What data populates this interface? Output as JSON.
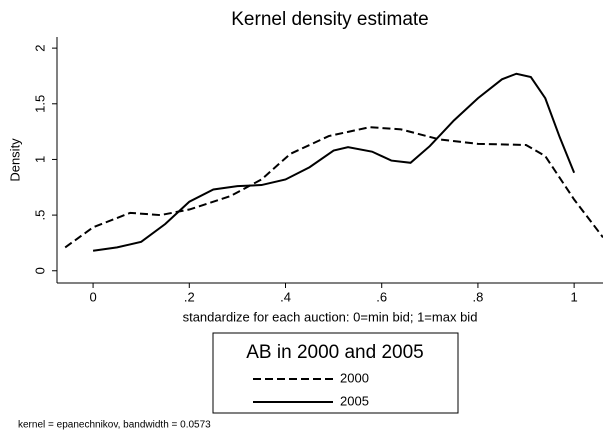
{
  "chart_data": {
    "type": "line",
    "title": "Kernel density estimate",
    "xlabel": "standardize for each auction: 0=min bid; 1=max bid",
    "ylabel": "Density",
    "note": "kernel = epanechnikov, bandwidth = 0.0573",
    "legend_title": "AB in 2000 and 2005",
    "xlim": [
      -0.075,
      1.06
    ],
    "ylim": [
      -0.11,
      2.1
    ],
    "xticks": [
      0,
      {
        "value": 0.2,
        "label": ".2"
      },
      {
        "value": 0.4,
        "label": ".4"
      },
      {
        "value": 0.6,
        "label": ".6"
      },
      {
        "value": 0.8,
        "label": ".8"
      },
      1
    ],
    "yticks": [
      0,
      {
        "value": 0.5,
        "label": ".5"
      },
      1,
      1.5,
      2
    ],
    "series": [
      {
        "name": "2000",
        "color": "#000000",
        "dash": true,
        "x": [
          -0.058,
          0,
          0.077,
          0.14,
          0.2,
          0.285,
          0.35,
          0.41,
          0.49,
          0.575,
          0.64,
          0.72,
          0.8,
          0.9,
          0.94,
          1.0,
          1.06
        ],
        "values": [
          0.21,
          0.39,
          0.52,
          0.5,
          0.55,
          0.67,
          0.82,
          1.05,
          1.21,
          1.29,
          1.27,
          1.18,
          1.14,
          1.13,
          1.03,
          0.64,
          0.3
        ]
      },
      {
        "name": "2005",
        "color": "#000000",
        "dash": false,
        "x": [
          0,
          0.05,
          0.1,
          0.15,
          0.2,
          0.25,
          0.3,
          0.35,
          0.4,
          0.45,
          0.5,
          0.53,
          0.58,
          0.62,
          0.66,
          0.7,
          0.75,
          0.8,
          0.85,
          0.88,
          0.91,
          0.94,
          0.97,
          1.0
        ],
        "values": [
          0.18,
          0.21,
          0.26,
          0.42,
          0.62,
          0.73,
          0.76,
          0.77,
          0.82,
          0.93,
          1.08,
          1.11,
          1.07,
          0.99,
          0.97,
          1.12,
          1.35,
          1.55,
          1.72,
          1.77,
          1.74,
          1.55,
          1.2,
          0.88
        ]
      }
    ]
  }
}
